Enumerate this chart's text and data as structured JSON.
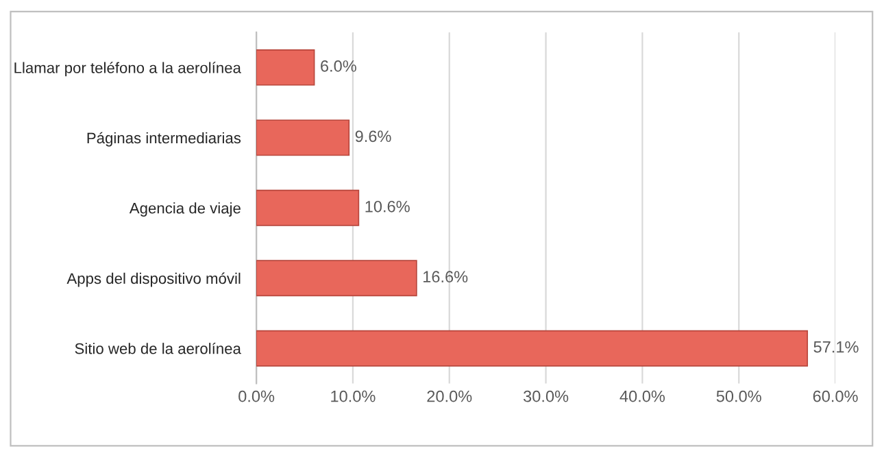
{
  "chart_data": {
    "type": "bar",
    "orientation": "horizontal",
    "categories": [
      "Llamar por teléfono a la aerolínea",
      "Páginas intermediarias",
      "Agencia de viaje",
      "Apps del dispositivo móvil",
      "Sitio web de la aerolínea"
    ],
    "values": [
      6.0,
      9.6,
      10.6,
      16.6,
      57.1
    ],
    "value_labels": [
      "6.0%",
      "9.6%",
      "10.6%",
      "16.6%",
      "57.1%"
    ],
    "color": "#e8675b",
    "xlim": [
      0,
      60
    ],
    "xticks": [
      {
        "value": 0,
        "label": "0.0%"
      },
      {
        "value": 10,
        "label": "10.0%"
      },
      {
        "value": 20,
        "label": "20.0%"
      },
      {
        "value": 30,
        "label": "30.0%"
      },
      {
        "value": 40,
        "label": "40.0%"
      },
      {
        "value": 50,
        "label": "50.0%"
      },
      {
        "value": 60,
        "label": "60.0%"
      }
    ],
    "grid": "x",
    "legend": false
  }
}
